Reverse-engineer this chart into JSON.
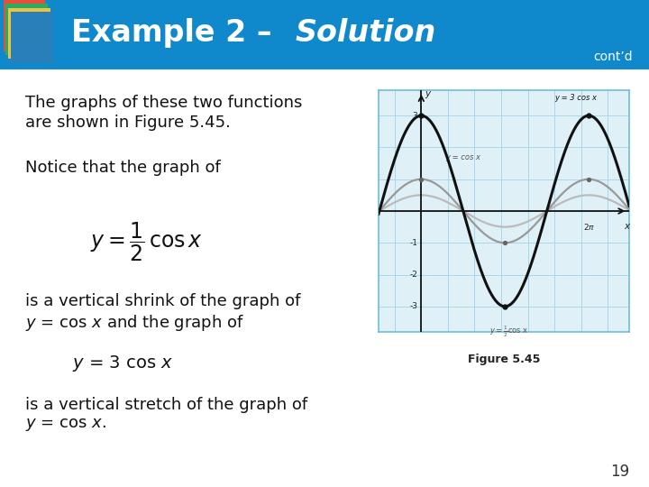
{
  "header_bg": "#1089cc",
  "header_text_color": "#ffffff",
  "slide_bg": "#ffffff",
  "page_number": "19",
  "contd": "cont’d",
  "graph_bg": "#dff0f7",
  "graph_border": "#6bbfdd",
  "graph_grid_color": "#a8d8ea",
  "figure_caption": "Figure 5.45",
  "xlim": [
    -1.6,
    7.8
  ],
  "ylim": [
    -3.8,
    3.8
  ],
  "body_fontsize": 13,
  "header_fontsize": 24
}
